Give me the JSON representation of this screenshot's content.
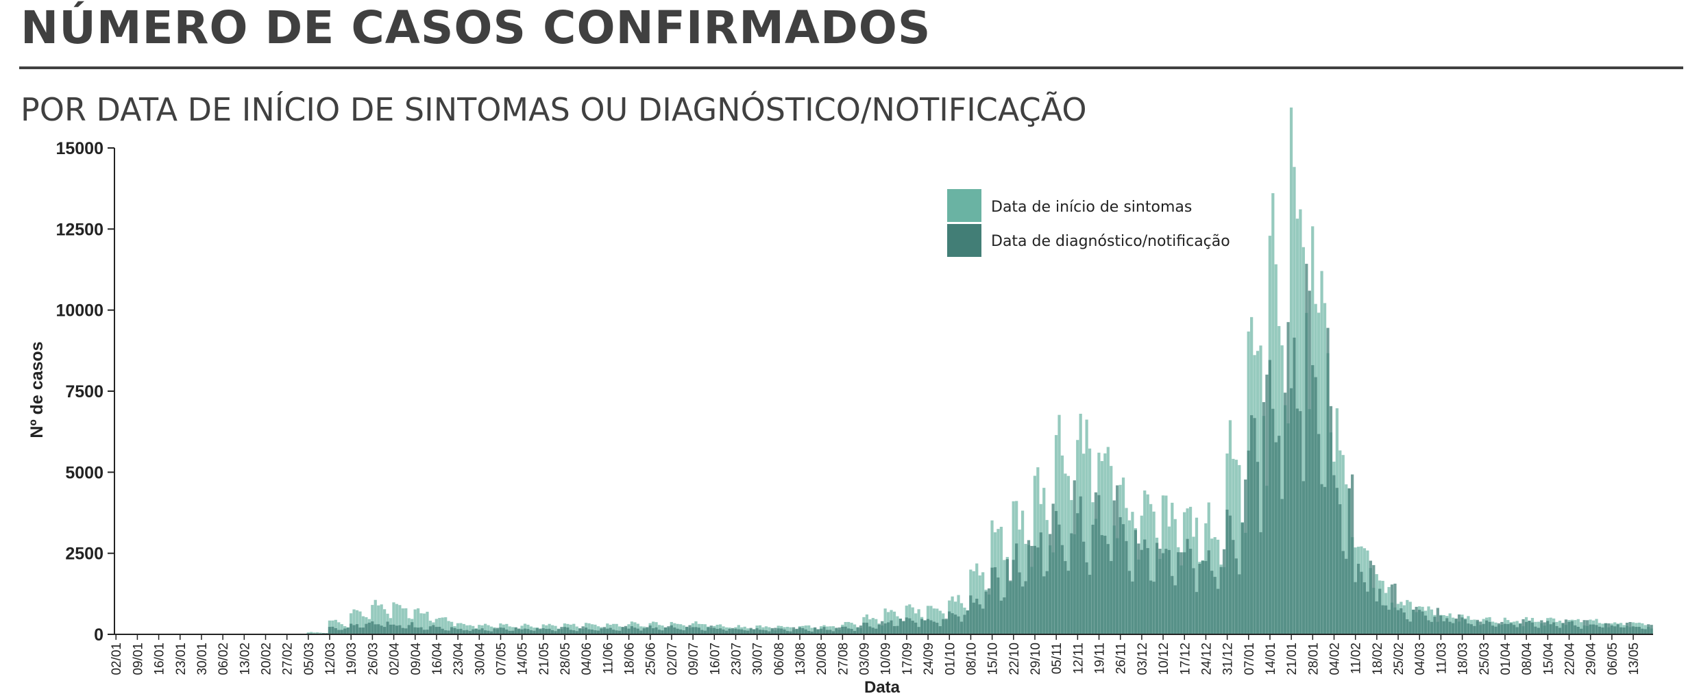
{
  "header": {
    "title": "NÚMERO DE CASOS CONFIRMADOS",
    "subtitle": "POR DATA DE INÍCIO DE SINTOMAS OU DIAGNÓSTICO/NOTIFICAÇÃO"
  },
  "colors": {
    "sintomas": "#6ab3a3",
    "diagnostico": "#427e76",
    "axis": "#222222"
  },
  "chart_data": {
    "type": "bar",
    "xlabel": "Data",
    "ylabel": "Nº de casos",
    "ylim": [
      0,
      15000
    ],
    "yticks": [
      0,
      2500,
      5000,
      7500,
      10000,
      12500,
      15000
    ],
    "x_tick_labels": [
      "02/01",
      "09/01",
      "16/01",
      "23/01",
      "30/01",
      "06/02",
      "13/02",
      "20/02",
      "27/02",
      "05/03",
      "12/03",
      "19/03",
      "26/03",
      "02/04",
      "09/04",
      "16/04",
      "23/04",
      "30/04",
      "07/05",
      "14/05",
      "21/05",
      "28/05",
      "04/06",
      "11/06",
      "18/06",
      "25/06",
      "02/07",
      "09/07",
      "16/07",
      "23/07",
      "30/07",
      "06/08",
      "13/08",
      "20/08",
      "27/08",
      "03/09",
      "10/09",
      "17/09",
      "24/09",
      "01/10",
      "08/10",
      "15/10",
      "22/10",
      "29/10",
      "05/11",
      "12/11",
      "19/11",
      "26/11",
      "03/12",
      "10/12",
      "17/12",
      "24/12",
      "31/12",
      "07/01",
      "14/01",
      "21/01",
      "28/01",
      "04/02",
      "11/02",
      "18/02",
      "25/02",
      "04/03",
      "11/03",
      "18/03",
      "25/03",
      "01/04",
      "08/04",
      "15/04",
      "22/04",
      "29/04",
      "06/05",
      "13/05"
    ],
    "legend_position": "top-center",
    "grid": false,
    "series": [
      {
        "name": "Data de início de sintomas",
        "weekly_values": [
          0,
          0,
          0,
          0,
          0,
          0,
          0,
          0,
          0,
          60,
          400,
          700,
          850,
          800,
          680,
          480,
          320,
          280,
          280,
          260,
          280,
          290,
          300,
          310,
          320,
          340,
          350,
          320,
          270,
          240,
          220,
          240,
          250,
          270,
          320,
          480,
          650,
          750,
          850,
          1100,
          2000,
          2900,
          3500,
          4300,
          5600,
          5800,
          5300,
          4100,
          3800,
          3600,
          3500,
          3200,
          5600,
          8800,
          10800,
          13200,
          10600,
          5600,
          2600,
          1500,
          1000,
          750,
          600,
          500,
          450,
          420,
          430,
          430,
          420,
          410,
          350,
          300
        ]
      },
      {
        "name": "Data de diagnóstico/notificação",
        "weekly_values": [
          0,
          0,
          0,
          0,
          0,
          0,
          0,
          0,
          0,
          30,
          200,
          300,
          320,
          280,
          240,
          200,
          170,
          170,
          170,
          170,
          175,
          185,
          190,
          200,
          210,
          220,
          225,
          210,
          190,
          170,
          160,
          170,
          175,
          190,
          220,
          310,
          400,
          450,
          500,
          650,
          1150,
          1800,
          2400,
          3100,
          3600,
          3700,
          3500,
          2900,
          2700,
          2600,
          2500,
          2350,
          3600,
          6200,
          7400,
          9000,
          7600,
          4000,
          1900,
          1200,
          800,
          620,
          500,
          420,
          380,
          360,
          370,
          370,
          360,
          350,
          300,
          260
        ]
      }
    ]
  }
}
